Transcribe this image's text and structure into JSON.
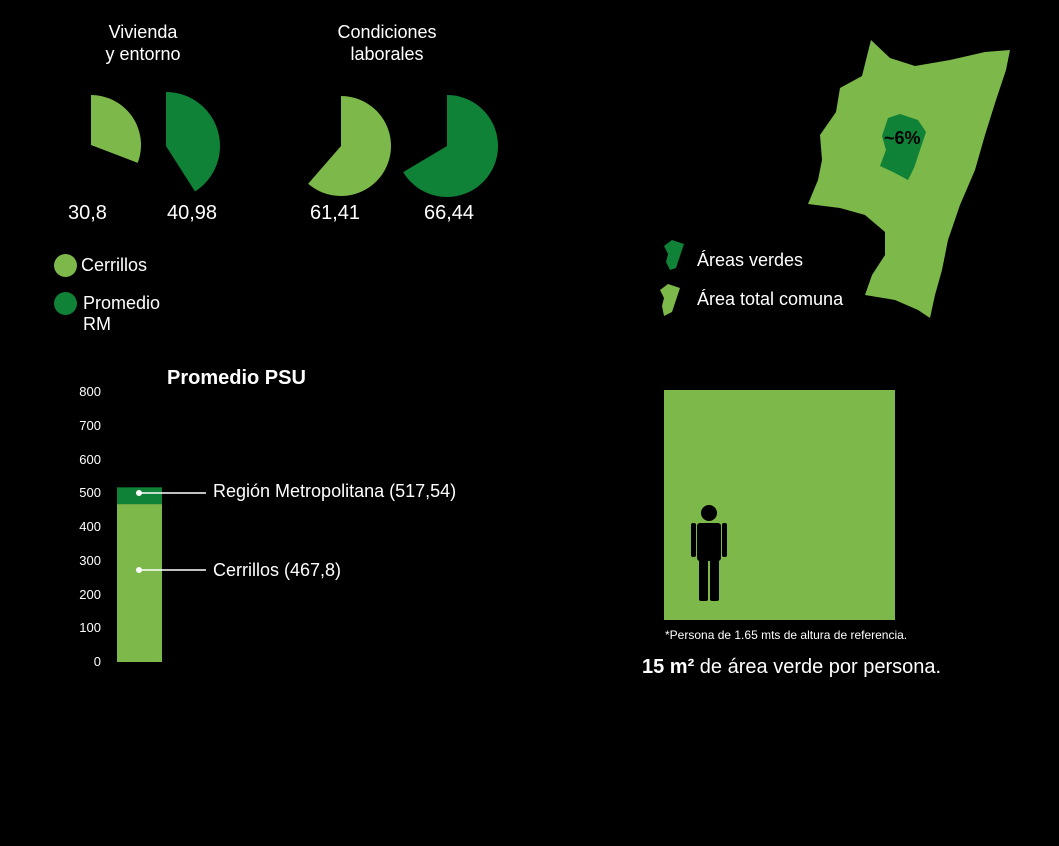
{
  "colors": {
    "cerrillos": "#7db84a",
    "rm": "#0f8237",
    "background": "#000000",
    "text": "#ffffff"
  },
  "chart_data": [
    {
      "type": "pie",
      "title": "Vivienda y entorno",
      "title_lines": [
        "Vivienda",
        "y entorno"
      ],
      "series": [
        {
          "name": "Cerrillos",
          "value": 30.8,
          "label": "30,8",
          "max": 100
        },
        {
          "name": "Promedio RM",
          "value": 40.98,
          "label": "40,98",
          "max": 100
        }
      ]
    },
    {
      "type": "pie",
      "title": "Condiciones laborales",
      "title_lines": [
        "Condiciones",
        "laborales"
      ],
      "series": [
        {
          "name": "Cerrillos",
          "value": 61.41,
          "label": "61,41",
          "max": 100
        },
        {
          "name": "Promedio RM",
          "value": 66.44,
          "label": "66,44",
          "max": 100
        }
      ]
    },
    {
      "type": "bar",
      "title": "Promedio PSU",
      "ylim": [
        0,
        800
      ],
      "yticks": [
        "0",
        "100",
        "200",
        "300",
        "400",
        "500",
        "600",
        "700",
        "800"
      ],
      "ytick_values": [
        0,
        100,
        200,
        300,
        400,
        500,
        600,
        700,
        800
      ],
      "series": [
        {
          "name": "Cerrillos",
          "value": 467.8,
          "label": "Cerrillos (467,8)"
        },
        {
          "name": "Región Metropolitana",
          "value": 517.54,
          "label": "Región Metropolitana (517,54)"
        }
      ]
    }
  ],
  "legend": [
    {
      "label": "Cerrillos",
      "color": "#7db84a"
    },
    {
      "label": "Promedio RM",
      "color": "#0f8237"
    }
  ],
  "map": {
    "green_share_label": "~6%",
    "legend": [
      {
        "label": "Áreas verdes",
        "color": "#0f8237",
        "icon": "map-shape-icon"
      },
      {
        "label": "Área total comuna",
        "color": "#7db84a",
        "icon": "map-shape-icon"
      }
    ]
  },
  "area_per_person": {
    "note": "*Persona de 1.65 mts de altura de referencia.",
    "headline_bold": "15 m²",
    "headline_rest": " de área verde por persona.",
    "icon": "person-icon"
  }
}
